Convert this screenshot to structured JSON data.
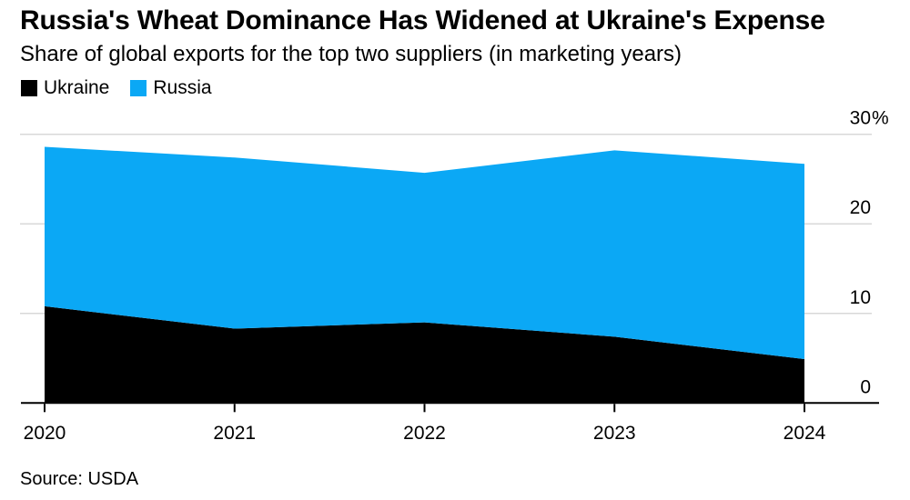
{
  "header": {
    "title": "Russia's Wheat Dominance Has Widened at Ukraine's Expense",
    "subtitle": "Share of global exports for the top two suppliers (in marketing years)"
  },
  "source": "Source: USDA",
  "chart_data": {
    "type": "area",
    "stacked": true,
    "title": "Russia's Wheat Dominance Has Widened at Ukraine's Expense",
    "subtitle": "Share of global exports for the top two suppliers (in marketing years)",
    "categories": [
      "2020",
      "2021",
      "2022",
      "2023",
      "2024"
    ],
    "series": [
      {
        "name": "Ukraine",
        "color": "#000000",
        "values": [
          10.8,
          8.3,
          9.0,
          7.4,
          4.9
        ]
      },
      {
        "name": "Russia",
        "color": "#0ba8f5",
        "values": [
          17.8,
          19.1,
          16.7,
          20.8,
          21.8
        ]
      }
    ],
    "xlabel": "",
    "ylabel": "",
    "ylim": [
      0,
      30
    ],
    "yticks": [
      0,
      10,
      20,
      30
    ],
    "ytick_labels": [
      "0",
      "10",
      "20",
      "30%"
    ],
    "grid": true,
    "grid_color": "#d8d8d8",
    "axis_color": "#000000",
    "legend_position": "top-left"
  }
}
